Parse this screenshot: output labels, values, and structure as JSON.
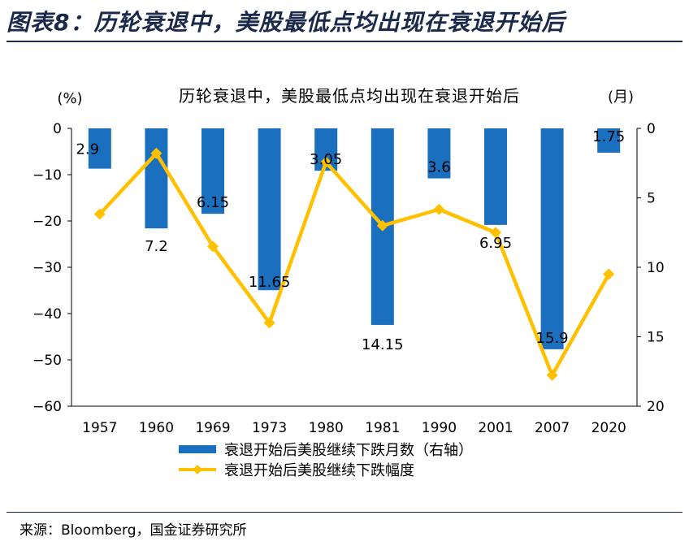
{
  "header": {
    "figure_title": "图表8：历轮衰退中，美股最低点均出现在衰退开始后"
  },
  "footer": {
    "source": "来源：Bloomberg，国金证券研究所"
  },
  "chart_data": {
    "type": "bar+line",
    "title": "历轮衰退中，美股最低点均出现在衰退开始后",
    "left_axis_unit": "(%)",
    "right_axis_unit": "(月)",
    "categories": [
      "1957",
      "1960",
      "1969",
      "1973",
      "1980",
      "1981",
      "1990",
      "2001",
      "2007",
      "2020"
    ],
    "y_left": {
      "min": -60,
      "max": 0,
      "ticks": [
        "0",
        "−10",
        "−20",
        "−30",
        "−40",
        "−50",
        "−60"
      ]
    },
    "y_right": {
      "min": 0,
      "max": 20,
      "inverted": true,
      "ticks": [
        "0",
        "5",
        "10",
        "15",
        "20"
      ]
    },
    "series": [
      {
        "name": "衰退开始后美股继续下跌月数（右轴）",
        "type": "bar",
        "axis": "right",
        "color": "#1a6fbf",
        "values": [
          2.9,
          7.2,
          6.15,
          11.65,
          3.05,
          14.15,
          3.6,
          6.95,
          15.9,
          1.75
        ],
        "labels": [
          "2.9",
          "7.2",
          "6.15",
          "11.65",
          "3.05",
          "14.15",
          "3.6",
          "6.95",
          "15.9",
          "1.75"
        ]
      },
      {
        "name": "衰退开始后美股继续下跌幅度",
        "type": "line",
        "axis": "left",
        "color": "#ffc000",
        "values": [
          -18.5,
          -5.4,
          -25.5,
          -42,
          -7.3,
          -21,
          -17.5,
          -22.5,
          -53.3,
          -31.5
        ]
      }
    ]
  }
}
